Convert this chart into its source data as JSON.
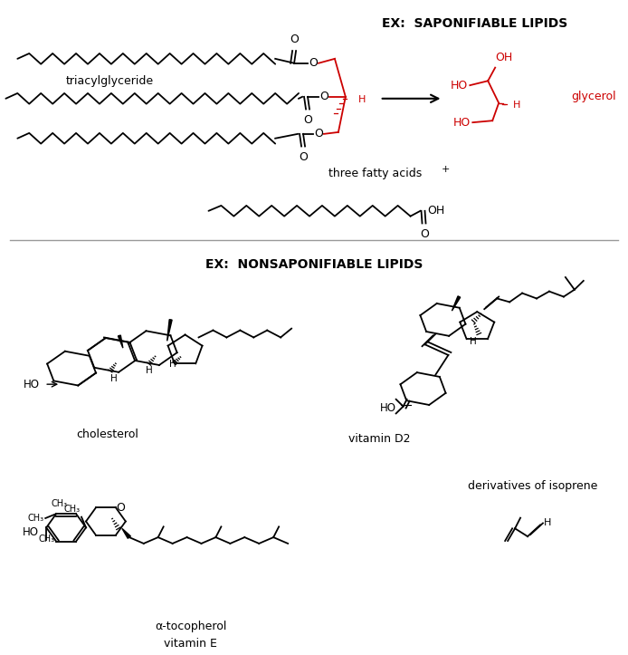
{
  "background_color": "#ffffff",
  "figsize": [
    6.94,
    7.23
  ],
  "dpi": 100,
  "top_label": "EX:  SAPONIFIABLE LIPIDS",
  "bottom_label": "EX:  NONSAPONIFIABLE LIPIDS",
  "triacylglyceride_label": "triacylglyceride",
  "glycerol_label": "glycerol",
  "three_fatty_acids_label": "three fatty acids",
  "cholesterol_label": "cholesterol",
  "vitamin_d2_label": "vitamin D2",
  "alpha_tocopherol_label": "α-tocopherol\nvitamin E",
  "derivatives_label": "derivatives of isoprene",
  "red_color": "#cc0000",
  "black_color": "#000000"
}
